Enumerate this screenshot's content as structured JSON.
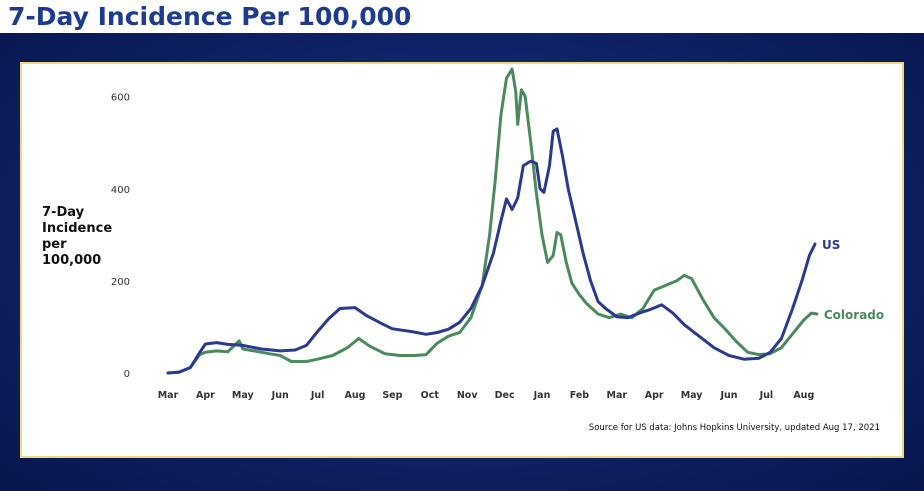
{
  "page": {
    "title": "7-Day Incidence Per 100,000"
  },
  "chart_data": {
    "type": "line",
    "title": "",
    "ylabel_lines": [
      "7-Day",
      "Incidence",
      "per",
      "100,000"
    ],
    "xlabel": "",
    "ylim": [
      0,
      660
    ],
    "yticks": [
      0,
      200,
      400,
      600
    ],
    "x_tick_labels": [
      "Mar",
      "Apr",
      "May",
      "Jun",
      "Jul",
      "Aug",
      "Sep",
      "Oct",
      "Nov",
      "Dec",
      "Jan",
      "Feb",
      "Mar",
      "Apr",
      "May",
      "Jun",
      "Jul",
      "Aug"
    ],
    "source_note": "Source for US data: Johns Hopkins University, updated Aug 17, 2021",
    "series": [
      {
        "name": "US",
        "color": "#2b3a8f",
        "points": [
          [
            0,
            0
          ],
          [
            0.3,
            2
          ],
          [
            0.6,
            12
          ],
          [
            0.85,
            45
          ],
          [
            1.0,
            63
          ],
          [
            1.3,
            66
          ],
          [
            1.6,
            62
          ],
          [
            2.0,
            60
          ],
          [
            2.5,
            52
          ],
          [
            3.0,
            48
          ],
          [
            3.4,
            50
          ],
          [
            3.7,
            60
          ],
          [
            4.0,
            90
          ],
          [
            4.3,
            118
          ],
          [
            4.6,
            140
          ],
          [
            5.0,
            142
          ],
          [
            5.3,
            125
          ],
          [
            5.7,
            108
          ],
          [
            6.0,
            96
          ],
          [
            6.5,
            90
          ],
          [
            6.9,
            84
          ],
          [
            7.2,
            88
          ],
          [
            7.5,
            95
          ],
          [
            7.8,
            110
          ],
          [
            8.1,
            140
          ],
          [
            8.4,
            190
          ],
          [
            8.7,
            260
          ],
          [
            8.9,
            330
          ],
          [
            9.05,
            378
          ],
          [
            9.2,
            355
          ],
          [
            9.35,
            380
          ],
          [
            9.5,
            450
          ],
          [
            9.7,
            460
          ],
          [
            9.85,
            455
          ],
          [
            9.95,
            400
          ],
          [
            10.05,
            392
          ],
          [
            10.2,
            450
          ],
          [
            10.3,
            525
          ],
          [
            10.4,
            530
          ],
          [
            10.55,
            470
          ],
          [
            10.7,
            400
          ],
          [
            10.9,
            330
          ],
          [
            11.1,
            260
          ],
          [
            11.3,
            200
          ],
          [
            11.5,
            155
          ],
          [
            11.7,
            140
          ],
          [
            12.0,
            122
          ],
          [
            12.3,
            120
          ],
          [
            12.6,
            130
          ],
          [
            12.9,
            138
          ],
          [
            13.2,
            148
          ],
          [
            13.5,
            130
          ],
          [
            13.8,
            105
          ],
          [
            14.2,
            80
          ],
          [
            14.6,
            55
          ],
          [
            15.0,
            38
          ],
          [
            15.4,
            30
          ],
          [
            15.8,
            32
          ],
          [
            16.1,
            45
          ],
          [
            16.4,
            75
          ],
          [
            16.7,
            140
          ],
          [
            16.95,
            200
          ],
          [
            17.15,
            255
          ],
          [
            17.3,
            280
          ]
        ]
      },
      {
        "name": "Colorado",
        "color": "#4b8a5c",
        "points": [
          [
            0,
            0
          ],
          [
            0.3,
            2
          ],
          [
            0.6,
            12
          ],
          [
            0.85,
            40
          ],
          [
            1.0,
            45
          ],
          [
            1.3,
            48
          ],
          [
            1.6,
            46
          ],
          [
            1.9,
            70
          ],
          [
            2.0,
            52
          ],
          [
            2.3,
            48
          ],
          [
            2.7,
            42
          ],
          [
            3.0,
            38
          ],
          [
            3.3,
            25
          ],
          [
            3.7,
            25
          ],
          [
            4.0,
            30
          ],
          [
            4.4,
            38
          ],
          [
            4.8,
            55
          ],
          [
            5.1,
            75
          ],
          [
            5.4,
            58
          ],
          [
            5.8,
            42
          ],
          [
            6.2,
            38
          ],
          [
            6.6,
            38
          ],
          [
            6.9,
            40
          ],
          [
            7.2,
            65
          ],
          [
            7.5,
            80
          ],
          [
            7.8,
            88
          ],
          [
            8.1,
            120
          ],
          [
            8.4,
            190
          ],
          [
            8.6,
            300
          ],
          [
            8.75,
            420
          ],
          [
            8.9,
            560
          ],
          [
            9.05,
            640
          ],
          [
            9.2,
            660
          ],
          [
            9.3,
            610
          ],
          [
            9.35,
            540
          ],
          [
            9.45,
            615
          ],
          [
            9.55,
            600
          ],
          [
            9.7,
            500
          ],
          [
            9.85,
            390
          ],
          [
            10.0,
            300
          ],
          [
            10.15,
            240
          ],
          [
            10.3,
            255
          ],
          [
            10.4,
            305
          ],
          [
            10.5,
            300
          ],
          [
            10.65,
            240
          ],
          [
            10.8,
            195
          ],
          [
            11.0,
            170
          ],
          [
            11.2,
            150
          ],
          [
            11.5,
            128
          ],
          [
            11.8,
            120
          ],
          [
            12.1,
            128
          ],
          [
            12.4,
            120
          ],
          [
            12.7,
            140
          ],
          [
            13.0,
            180
          ],
          [
            13.3,
            190
          ],
          [
            13.6,
            200
          ],
          [
            13.8,
            212
          ],
          [
            14.0,
            205
          ],
          [
            14.3,
            160
          ],
          [
            14.6,
            120
          ],
          [
            14.9,
            95
          ],
          [
            15.2,
            68
          ],
          [
            15.5,
            45
          ],
          [
            15.8,
            40
          ],
          [
            16.1,
            42
          ],
          [
            16.4,
            55
          ],
          [
            16.7,
            85
          ],
          [
            17.0,
            115
          ],
          [
            17.2,
            130
          ],
          [
            17.35,
            128
          ]
        ]
      }
    ]
  }
}
